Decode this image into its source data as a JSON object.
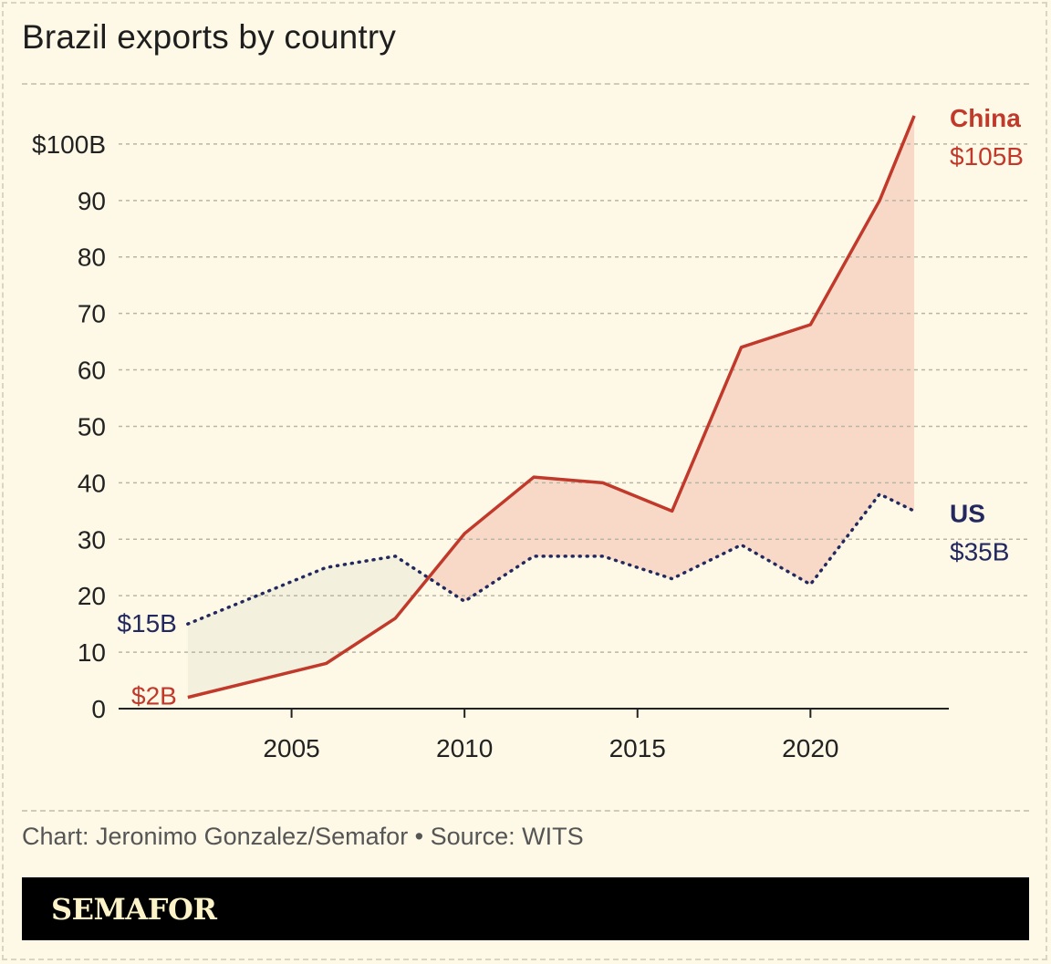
{
  "title": "Brazil exports by country",
  "credit": "Chart: Jeronimo Gonzalez/Semafor • Source: WITS",
  "brand": "SEMAFOR",
  "colors": {
    "background": "#fdf9e6",
    "china": "#c0392b",
    "us": "#23285e",
    "china_fill": "#f8d9c8",
    "us_fill": "#f3f0de"
  },
  "chart_data": {
    "type": "line",
    "title": "Brazil exports by country",
    "xlabel": "",
    "ylabel": "",
    "xlim": [
      2000,
      2024
    ],
    "ylim": [
      0,
      110
    ],
    "grid": true,
    "x_ticks": [
      2005,
      2010,
      2015,
      2020
    ],
    "y_ticks": [
      {
        "value": 0,
        "label": "0"
      },
      {
        "value": 10,
        "label": "10"
      },
      {
        "value": 20,
        "label": "20"
      },
      {
        "value": 30,
        "label": "30"
      },
      {
        "value": 40,
        "label": "40"
      },
      {
        "value": 50,
        "label": "50"
      },
      {
        "value": 60,
        "label": "60"
      },
      {
        "value": 70,
        "label": "70"
      },
      {
        "value": 80,
        "label": "80"
      },
      {
        "value": 90,
        "label": "90"
      },
      {
        "value": 100,
        "label": "$100B"
      }
    ],
    "series": [
      {
        "name": "China",
        "style": "solid",
        "color": "#c0392b",
        "x": [
          2002,
          2006,
          2008,
          2010,
          2012,
          2014,
          2016,
          2018,
          2020,
          2022,
          2023
        ],
        "y": [
          2,
          8,
          16,
          31,
          41,
          40,
          35,
          64,
          68,
          90,
          105
        ],
        "start_label": "$2B",
        "end_label": "$105B"
      },
      {
        "name": "US",
        "style": "dotted",
        "color": "#23285e",
        "x": [
          2002,
          2004,
          2006,
          2008,
          2010,
          2012,
          2014,
          2016,
          2018,
          2020,
          2022,
          2023
        ],
        "y": [
          15,
          20,
          25,
          27,
          19,
          27,
          27,
          23,
          29,
          22,
          38,
          35
        ],
        "start_label": "$15B",
        "end_label": "$35B"
      }
    ]
  }
}
